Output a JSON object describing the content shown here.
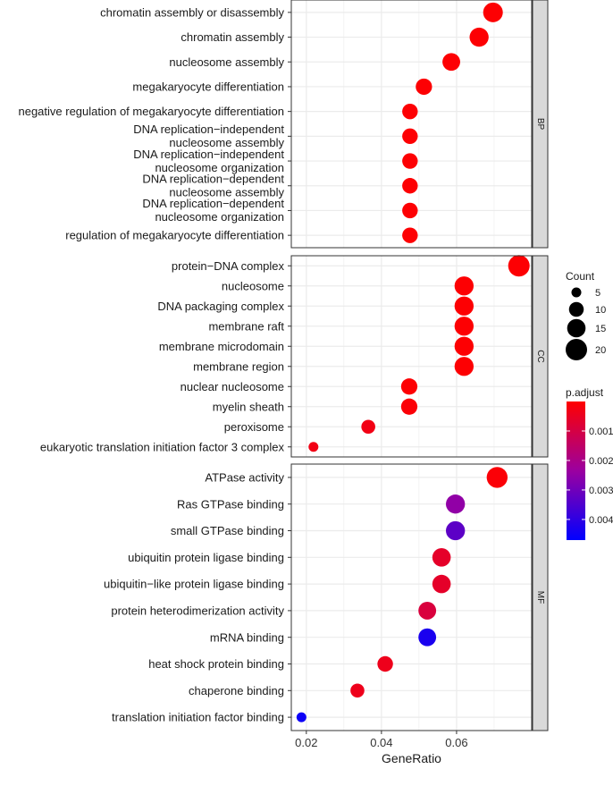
{
  "chart_data": {
    "type": "scatter",
    "xlabel": "GeneRatio",
    "xlim": [
      0.016,
      0.08
    ],
    "xticks": [
      0.02,
      0.04,
      0.06
    ],
    "xtick_labels": [
      "0.02",
      "0.04",
      "0.06"
    ],
    "panels": [
      {
        "name": "BP",
        "terms": [
          {
            "label": "chromatin assembly or disassembly",
            "x": 0.0697,
            "count": 17,
            "p_adjust": 5e-05
          },
          {
            "label": "chromatin assembly",
            "x": 0.066,
            "count": 16,
            "p_adjust": 5e-05
          },
          {
            "label": "nucleosome assembly",
            "x": 0.0586,
            "count": 14,
            "p_adjust": 5e-05
          },
          {
            "label": "megakaryocyte differentiation",
            "x": 0.0513,
            "count": 12,
            "p_adjust": 5e-05
          },
          {
            "label": "negative regulation of megakaryocyte differentiation",
            "x": 0.0476,
            "count": 11,
            "p_adjust": 5e-05
          },
          {
            "label": "DNA replication−independent\nnucleosome assembly",
            "x": 0.0476,
            "count": 11,
            "p_adjust": 5e-05
          },
          {
            "label": "DNA replication−independent\nnucleosome organization",
            "x": 0.0476,
            "count": 11,
            "p_adjust": 5e-05
          },
          {
            "label": "DNA replication−dependent\nnucleosome assembly",
            "x": 0.0476,
            "count": 11,
            "p_adjust": 5e-05
          },
          {
            "label": "DNA replication−dependent\nnucleosome organization",
            "x": 0.0476,
            "count": 11,
            "p_adjust": 5e-05
          },
          {
            "label": "regulation of megakaryocyte differentiation",
            "x": 0.0476,
            "count": 11,
            "p_adjust": 5e-05
          }
        ]
      },
      {
        "name": "CC",
        "terms": [
          {
            "label": "protein−DNA complex",
            "x": 0.0766,
            "count": 20,
            "p_adjust": 5e-05
          },
          {
            "label": "nucleosome",
            "x": 0.062,
            "count": 16,
            "p_adjust": 5e-05
          },
          {
            "label": "DNA packaging complex",
            "x": 0.062,
            "count": 16,
            "p_adjust": 5e-05
          },
          {
            "label": "membrane raft",
            "x": 0.062,
            "count": 16,
            "p_adjust": 5e-05
          },
          {
            "label": "membrane microdomain",
            "x": 0.062,
            "count": 16,
            "p_adjust": 5e-05
          },
          {
            "label": "membrane region",
            "x": 0.062,
            "count": 16,
            "p_adjust": 5e-05
          },
          {
            "label": "nuclear nucleosome",
            "x": 0.0474,
            "count": 12,
            "p_adjust": 5e-05
          },
          {
            "label": "myelin sheath",
            "x": 0.0474,
            "count": 12,
            "p_adjust": 0.0001
          },
          {
            "label": "peroxisome",
            "x": 0.0365,
            "count": 9,
            "p_adjust": 0.0003
          },
          {
            "label": "eukaryotic translation initiation factor 3 complex",
            "x": 0.0219,
            "count": 5,
            "p_adjust": 0.0003
          }
        ]
      },
      {
        "name": "MF",
        "terms": [
          {
            "label": "ATPase activity",
            "x": 0.0708,
            "count": 19,
            "p_adjust": 0.0001
          },
          {
            "label": "Ras GTPase binding",
            "x": 0.0597,
            "count": 16,
            "p_adjust": 0.0025
          },
          {
            "label": "small GTPase binding",
            "x": 0.0597,
            "count": 16,
            "p_adjust": 0.0033
          },
          {
            "label": "ubiquitin protein ligase binding",
            "x": 0.056,
            "count": 15,
            "p_adjust": 0.0006
          },
          {
            "label": "ubiquitin−like protein ligase binding",
            "x": 0.056,
            "count": 15,
            "p_adjust": 0.0006
          },
          {
            "label": "protein heterodimerization activity",
            "x": 0.0522,
            "count": 14,
            "p_adjust": 0.0009
          },
          {
            "label": "mRNA binding",
            "x": 0.0522,
            "count": 14,
            "p_adjust": 0.0043
          },
          {
            "label": "heat shock protein binding",
            "x": 0.041,
            "count": 11,
            "p_adjust": 0.0004
          },
          {
            "label": "chaperone binding",
            "x": 0.0336,
            "count": 9,
            "p_adjust": 0.0004
          },
          {
            "label": "translation initiation factor binding",
            "x": 0.0187,
            "count": 5,
            "p_adjust": 0.0045
          }
        ]
      }
    ],
    "legend_size": {
      "title": "Count",
      "values": [
        5,
        10,
        15,
        20
      ],
      "labels": [
        "5",
        "10",
        "15",
        "20"
      ]
    },
    "legend_color": {
      "title": "p.adjust",
      "low_color": "#ff0000",
      "high_color": "#0000ff",
      "range": [
        0.0,
        0.0047
      ],
      "ticks": [
        0.001,
        0.002,
        0.003,
        0.004
      ],
      "tick_labels": [
        "0.001",
        "0.002",
        "0.003",
        "0.004"
      ]
    },
    "colors": {
      "panel_bg": "#ffffff",
      "grid": "#ebebeb",
      "strip_bg": "#d9d9d9",
      "border": "#333333"
    }
  }
}
